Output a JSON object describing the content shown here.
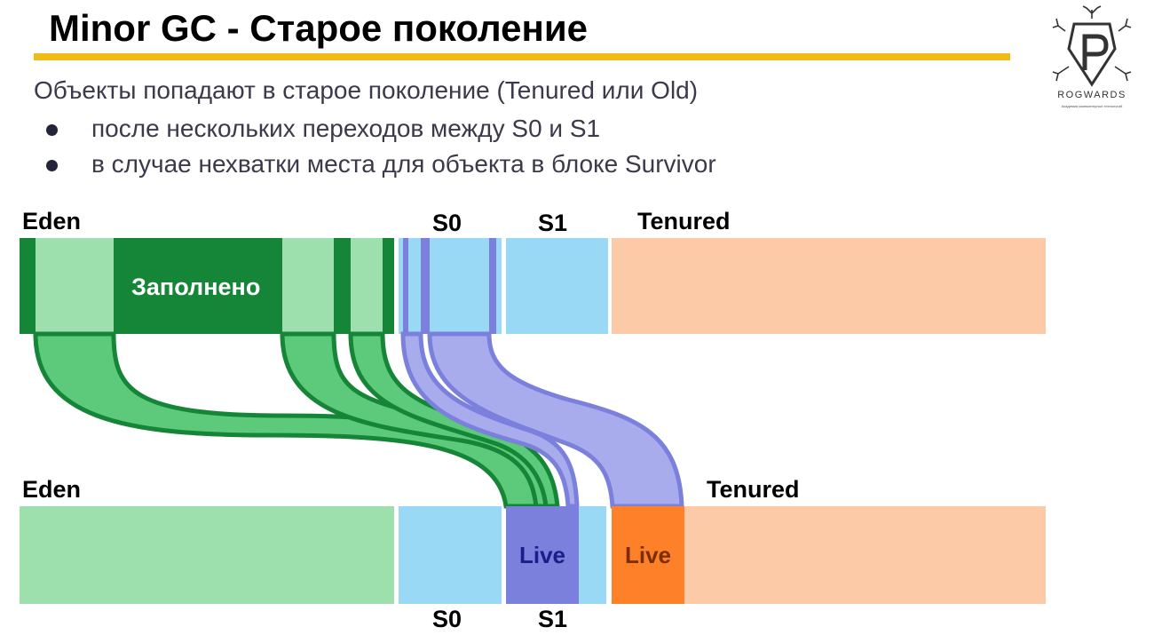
{
  "slide": {
    "title": "Minor GC - Старое поколение",
    "intro": "Объекты попадают в старое поколение (Tenured или Old)",
    "bullets": [
      "после нескольких переходов между S0 и S1",
      "в случае нехватки места для объекта в блоке Survivor"
    ]
  },
  "logo": {
    "icon": "rogwards-p-shield-logo",
    "text": "ROGWARDS",
    "tagline": "Академия компьютерных технологий"
  },
  "diagram": {
    "before": {
      "eden_label": "Eden",
      "s0_label": "S0",
      "s1_label": "S1",
      "tenured_label": "Tenured",
      "eden_text": "Заполнено"
    },
    "after": {
      "eden_label": "Eden",
      "s0_label": "S0",
      "s1_label": "S1",
      "tenured_label": "Tenured",
      "s1_live": "Live",
      "tenured_live": "Live"
    },
    "colors": {
      "eden_full": "#158537",
      "eden_light": "#9ee0ad",
      "flow_green": "#5dc97a",
      "survivor": "#99d9f5",
      "live_blue": "#7b80dd",
      "flow_blue": "#a9acec",
      "tenured": "#fccaa7",
      "tenured_live": "#fe8029",
      "accent": "#f0bc1a"
    }
  }
}
